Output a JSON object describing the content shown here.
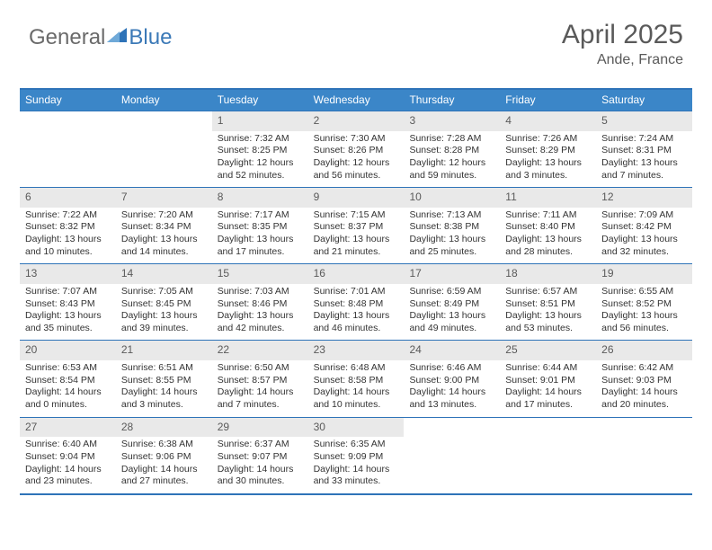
{
  "logo": {
    "part1": "General",
    "part2": "Blue"
  },
  "title": "April 2025",
  "subtitle": "Ande, France",
  "colors": {
    "header_bg": "#3b86c8",
    "border": "#2e73b8",
    "num_bg": "#e9e9e9",
    "text": "#333333",
    "logo_gray": "#6a6a6a",
    "logo_blue": "#3b79b7"
  },
  "day_names": [
    "Sunday",
    "Monday",
    "Tuesday",
    "Wednesday",
    "Thursday",
    "Friday",
    "Saturday"
  ],
  "weeks": [
    [
      {
        "n": "",
        "d": ""
      },
      {
        "n": "",
        "d": ""
      },
      {
        "n": "1",
        "sr": "7:32 AM",
        "ss": "8:25 PM",
        "dl": "12 hours and 52 minutes."
      },
      {
        "n": "2",
        "sr": "7:30 AM",
        "ss": "8:26 PM",
        "dl": "12 hours and 56 minutes."
      },
      {
        "n": "3",
        "sr": "7:28 AM",
        "ss": "8:28 PM",
        "dl": "12 hours and 59 minutes."
      },
      {
        "n": "4",
        "sr": "7:26 AM",
        "ss": "8:29 PM",
        "dl": "13 hours and 3 minutes."
      },
      {
        "n": "5",
        "sr": "7:24 AM",
        "ss": "8:31 PM",
        "dl": "13 hours and 7 minutes."
      }
    ],
    [
      {
        "n": "6",
        "sr": "7:22 AM",
        "ss": "8:32 PM",
        "dl": "13 hours and 10 minutes."
      },
      {
        "n": "7",
        "sr": "7:20 AM",
        "ss": "8:34 PM",
        "dl": "13 hours and 14 minutes."
      },
      {
        "n": "8",
        "sr": "7:17 AM",
        "ss": "8:35 PM",
        "dl": "13 hours and 17 minutes."
      },
      {
        "n": "9",
        "sr": "7:15 AM",
        "ss": "8:37 PM",
        "dl": "13 hours and 21 minutes."
      },
      {
        "n": "10",
        "sr": "7:13 AM",
        "ss": "8:38 PM",
        "dl": "13 hours and 25 minutes."
      },
      {
        "n": "11",
        "sr": "7:11 AM",
        "ss": "8:40 PM",
        "dl": "13 hours and 28 minutes."
      },
      {
        "n": "12",
        "sr": "7:09 AM",
        "ss": "8:42 PM",
        "dl": "13 hours and 32 minutes."
      }
    ],
    [
      {
        "n": "13",
        "sr": "7:07 AM",
        "ss": "8:43 PM",
        "dl": "13 hours and 35 minutes."
      },
      {
        "n": "14",
        "sr": "7:05 AM",
        "ss": "8:45 PM",
        "dl": "13 hours and 39 minutes."
      },
      {
        "n": "15",
        "sr": "7:03 AM",
        "ss": "8:46 PM",
        "dl": "13 hours and 42 minutes."
      },
      {
        "n": "16",
        "sr": "7:01 AM",
        "ss": "8:48 PM",
        "dl": "13 hours and 46 minutes."
      },
      {
        "n": "17",
        "sr": "6:59 AM",
        "ss": "8:49 PM",
        "dl": "13 hours and 49 minutes."
      },
      {
        "n": "18",
        "sr": "6:57 AM",
        "ss": "8:51 PM",
        "dl": "13 hours and 53 minutes."
      },
      {
        "n": "19",
        "sr": "6:55 AM",
        "ss": "8:52 PM",
        "dl": "13 hours and 56 minutes."
      }
    ],
    [
      {
        "n": "20",
        "sr": "6:53 AM",
        "ss": "8:54 PM",
        "dl": "14 hours and 0 minutes."
      },
      {
        "n": "21",
        "sr": "6:51 AM",
        "ss": "8:55 PM",
        "dl": "14 hours and 3 minutes."
      },
      {
        "n": "22",
        "sr": "6:50 AM",
        "ss": "8:57 PM",
        "dl": "14 hours and 7 minutes."
      },
      {
        "n": "23",
        "sr": "6:48 AM",
        "ss": "8:58 PM",
        "dl": "14 hours and 10 minutes."
      },
      {
        "n": "24",
        "sr": "6:46 AM",
        "ss": "9:00 PM",
        "dl": "14 hours and 13 minutes."
      },
      {
        "n": "25",
        "sr": "6:44 AM",
        "ss": "9:01 PM",
        "dl": "14 hours and 17 minutes."
      },
      {
        "n": "26",
        "sr": "6:42 AM",
        "ss": "9:03 PM",
        "dl": "14 hours and 20 minutes."
      }
    ],
    [
      {
        "n": "27",
        "sr": "6:40 AM",
        "ss": "9:04 PM",
        "dl": "14 hours and 23 minutes."
      },
      {
        "n": "28",
        "sr": "6:38 AM",
        "ss": "9:06 PM",
        "dl": "14 hours and 27 minutes."
      },
      {
        "n": "29",
        "sr": "6:37 AM",
        "ss": "9:07 PM",
        "dl": "14 hours and 30 minutes."
      },
      {
        "n": "30",
        "sr": "6:35 AM",
        "ss": "9:09 PM",
        "dl": "14 hours and 33 minutes."
      },
      {
        "n": "",
        "d": ""
      },
      {
        "n": "",
        "d": ""
      },
      {
        "n": "",
        "d": ""
      }
    ]
  ],
  "labels": {
    "sunrise": "Sunrise: ",
    "sunset": "Sunset: ",
    "daylight": "Daylight: "
  }
}
